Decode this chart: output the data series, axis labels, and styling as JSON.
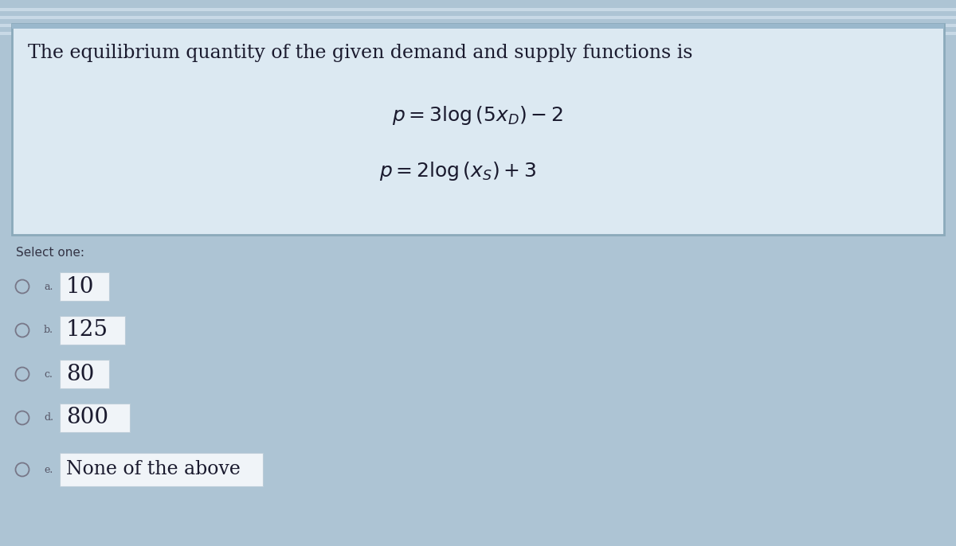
{
  "bg_color": "#adc4d4",
  "stripe_color": "#c5d8e5",
  "question_box_color": "#dce9f2",
  "question_box_border_top": "#9ab8cc",
  "question_box_border": "#8baabb",
  "question_text": "The equilibrium quantity of the given demand and supply functions is",
  "formula1": "$p = 3\\mathrm{log}\\,(5x_D) - 2$",
  "formula2": "$p = 2\\mathrm{log}\\,(x_S) + 3$",
  "select_one_text": "Select one:",
  "options": [
    {
      "label": "a.",
      "value": "10",
      "box_width": 0.62
    },
    {
      "label": "b.",
      "value": "125",
      "box_width": 0.82
    },
    {
      "label": "c.",
      "value": "80",
      "box_width": 0.62
    },
    {
      "label": "d.",
      "value": "800",
      "box_width": 0.88
    },
    {
      "label": "e.",
      "value": "None of the above",
      "box_width": 2.55
    }
  ],
  "option_box_color": "#f0f4f8",
  "option_box_border": "#bbccd8",
  "question_text_color": "#1a1a2e",
  "formula_text_color": "#1a1a2e",
  "select_one_color": "#333344",
  "option_label_color": "#555566",
  "option_value_color": "#1a1a2e",
  "circle_color": "#777788",
  "top_stripe_color": "#c8d9e6"
}
